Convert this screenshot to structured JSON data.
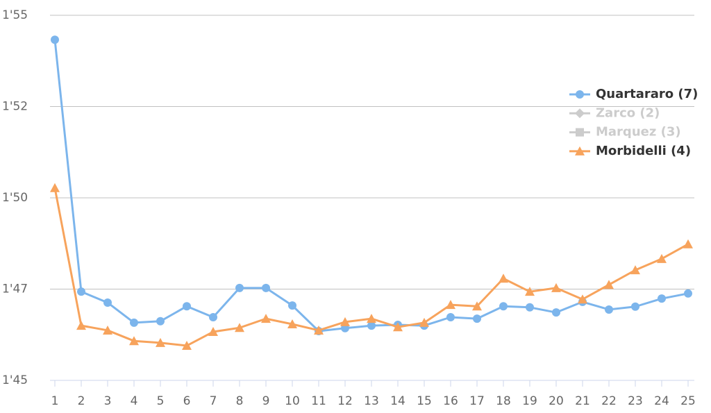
{
  "chart_data": {
    "type": "line",
    "x": [
      1,
      2,
      3,
      4,
      5,
      6,
      7,
      8,
      9,
      10,
      11,
      12,
      13,
      14,
      15,
      16,
      17,
      18,
      19,
      20,
      21,
      22,
      23,
      24,
      25
    ],
    "xlim": [
      1,
      25
    ],
    "ylim": [
      105,
      115
    ],
    "yticks": [
      {
        "value": 105,
        "label": "1'45"
      },
      {
        "value": 107.5,
        "label": "1'47"
      },
      {
        "value": 110,
        "label": "1'50"
      },
      {
        "value": 112.5,
        "label": "1'52"
      },
      {
        "value": 115,
        "label": "1'55"
      }
    ],
    "grid": true,
    "legend": "right",
    "series": [
      {
        "name": "Quartararo (7)",
        "color": "#7cb5ec",
        "marker": "circle",
        "visible": true,
        "values": [
          114.33,
          107.43,
          107.13,
          106.58,
          106.62,
          107.03,
          106.73,
          107.53,
          107.53,
          107.05,
          106.35,
          106.43,
          106.5,
          106.52,
          106.5,
          106.73,
          106.69,
          107.03,
          107.0,
          106.86,
          107.15,
          106.94,
          107.02,
          107.24,
          107.38
        ]
      },
      {
        "name": "Zarco (2)",
        "color": "#434348",
        "marker": "diamond",
        "visible": false
      },
      {
        "name": "Marquez (3)",
        "color": "#90ed7d",
        "marker": "square",
        "visible": false
      },
      {
        "name": "Morbidelli (4)",
        "color": "#f7a35c",
        "marker": "triangle",
        "visible": true,
        "values": [
          110.27,
          106.5,
          106.37,
          106.08,
          106.03,
          105.95,
          106.33,
          106.44,
          106.69,
          106.54,
          106.37,
          106.6,
          106.69,
          106.46,
          106.58,
          107.07,
          107.03,
          107.79,
          107.43,
          107.53,
          107.22,
          107.62,
          108.02,
          108.33,
          108.73
        ]
      }
    ]
  }
}
